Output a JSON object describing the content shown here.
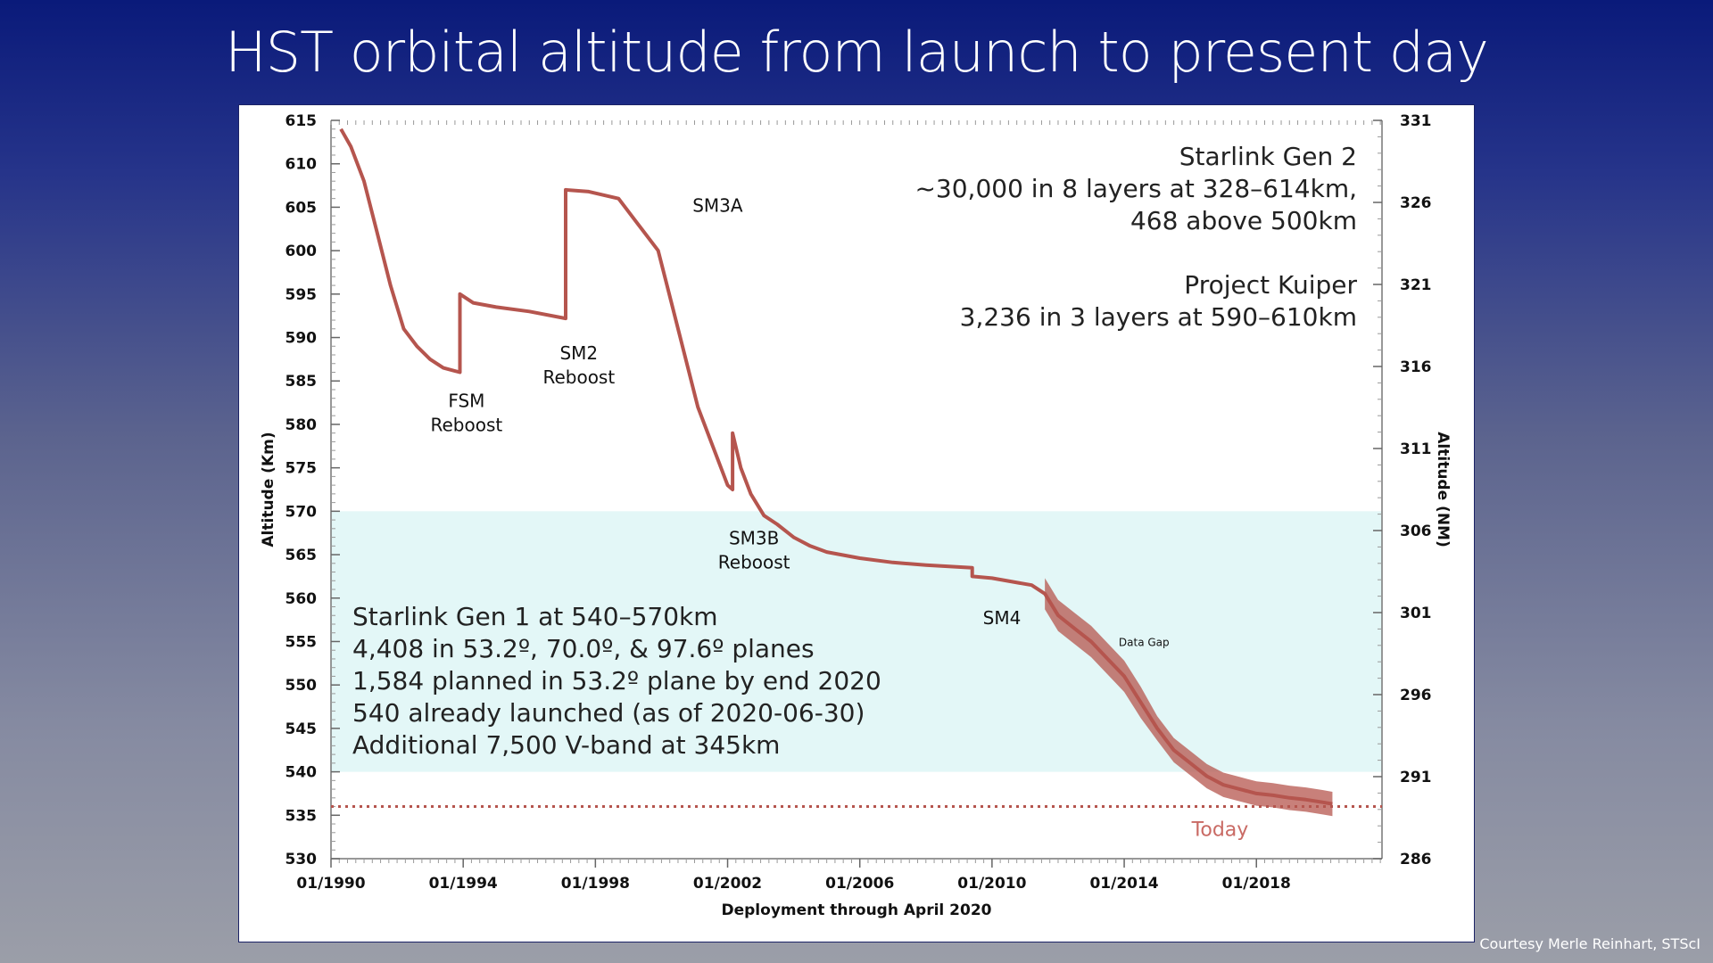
{
  "slide": {
    "title": "HST orbital altitude from launch to present day",
    "credit": "Courtesy Merle Reinhart, STScI"
  },
  "colors": {
    "background_top": "#0a1a7a",
    "background_bottom": "#9b9ea8",
    "series": "#b5554e",
    "band": "#e3f7f7",
    "today_text": "#c96a64"
  },
  "chart_data": {
    "type": "line",
    "title": "",
    "xlabel": "Deployment through April 2020",
    "ylabel": "Altitude (Km)",
    "y2label": "Altitude (NM)",
    "xlim": [
      1990,
      2021.8
    ],
    "ylim": [
      530,
      615
    ],
    "y2lim": [
      286,
      331
    ],
    "x_ticks": [
      {
        "value": 1990,
        "label": "01/1990"
      },
      {
        "value": 1994,
        "label": "01/1994"
      },
      {
        "value": 1998,
        "label": "01/1998"
      },
      {
        "value": 2002,
        "label": "01/2002"
      },
      {
        "value": 2006,
        "label": "01/2006"
      },
      {
        "value": 2010,
        "label": "01/2010"
      },
      {
        "value": 2014,
        "label": "01/2014"
      },
      {
        "value": 2018,
        "label": "01/2018"
      }
    ],
    "y_ticks": [
      530,
      535,
      540,
      545,
      550,
      555,
      560,
      565,
      570,
      575,
      580,
      585,
      590,
      595,
      600,
      605,
      610,
      615
    ],
    "y2_ticks": [
      286,
      291,
      296,
      301,
      306,
      311,
      316,
      321,
      326,
      331
    ],
    "series": [
      {
        "name": "HST altitude",
        "x": [
          1990.3,
          1990.6,
          1991.0,
          1991.4,
          1991.8,
          1992.2,
          1992.6,
          1993.0,
          1993.4,
          1993.9,
          1993.9,
          1994.3,
          1995.0,
          1996.0,
          1997.1,
          1997.1,
          1997.8,
          1998.7,
          1999.3,
          1999.9,
          2000.3,
          2000.7,
          2001.1,
          2001.5,
          2001.8,
          2002.0,
          2002.15,
          2002.15,
          2002.4,
          2002.7,
          2003.1,
          2003.5,
          2004.0,
          2004.5,
          2005.0,
          2006.0,
          2007.0,
          2008.0,
          2009.4,
          2009.4,
          2010.0,
          2011.2,
          2011.6,
          2012.0,
          2012.5,
          2013.0,
          2013.5,
          2014.0,
          2014.5,
          2015.0,
          2015.5,
          2016.0,
          2016.5,
          2017.0,
          2017.5,
          2018.0,
          2018.5,
          2019.0,
          2019.5,
          2020.0,
          2020.3
        ],
        "y": [
          614,
          612,
          608,
          602,
          596,
          591,
          589,
          587.5,
          586.5,
          586,
          595,
          594,
          593.5,
          593,
          592.2,
          607,
          606.8,
          606,
          603,
          600,
          594,
          588,
          582,
          578,
          575,
          573,
          572.5,
          579,
          575,
          572,
          569.5,
          568.5,
          567,
          566,
          565.3,
          564.6,
          564.1,
          563.8,
          563.5,
          562.5,
          562.3,
          561.5,
          560.5,
          558,
          556.5,
          555,
          553,
          551,
          548,
          545,
          542.5,
          541,
          539.5,
          538.5,
          538.0,
          537.5,
          537.3,
          537.0,
          536.8,
          536.5,
          536.3
        ]
      }
    ],
    "shaded_band": {
      "y_from": 540,
      "y_to": 570
    },
    "reference_line": {
      "y": 536,
      "style": "dotted",
      "label": "Today"
    },
    "annotations": [
      {
        "text": [
          "FSM",
          "Reboost"
        ],
        "x": 1994.1,
        "y": 582
      },
      {
        "text": [
          "SM2",
          "Reboost"
        ],
        "x": 1997.5,
        "y": 587.5
      },
      {
        "text": [
          "SM3A"
        ],
        "x": 2001.7,
        "y": 604.5
      },
      {
        "text": [
          "SM3B",
          "Reboost"
        ],
        "x": 2002.8,
        "y": 566.2
      },
      {
        "text": [
          "SM4"
        ],
        "x": 2010.3,
        "y": 557
      },
      {
        "text": [
          "Data Gap"
        ],
        "x": 2014.6,
        "y": 554.5,
        "small": true
      }
    ],
    "starlink_gen1_text": [
      "Starlink Gen 1 at 540–570km",
      "4,408 in 53.2º, 70.0º, & 97.6º planes",
      "1,584 planned in 53.2º plane by end 2020",
      "540 already launched (as of 2020-06-30)",
      "Additional 7,500 V-band at 345km"
    ],
    "starlink_gen2_text": [
      "Starlink Gen 2",
      "~30,000 in 8 layers at 328–614km,",
      "468 above 500km",
      "",
      "Project Kuiper",
      "3,236 in 3 layers at 590–610km"
    ]
  }
}
